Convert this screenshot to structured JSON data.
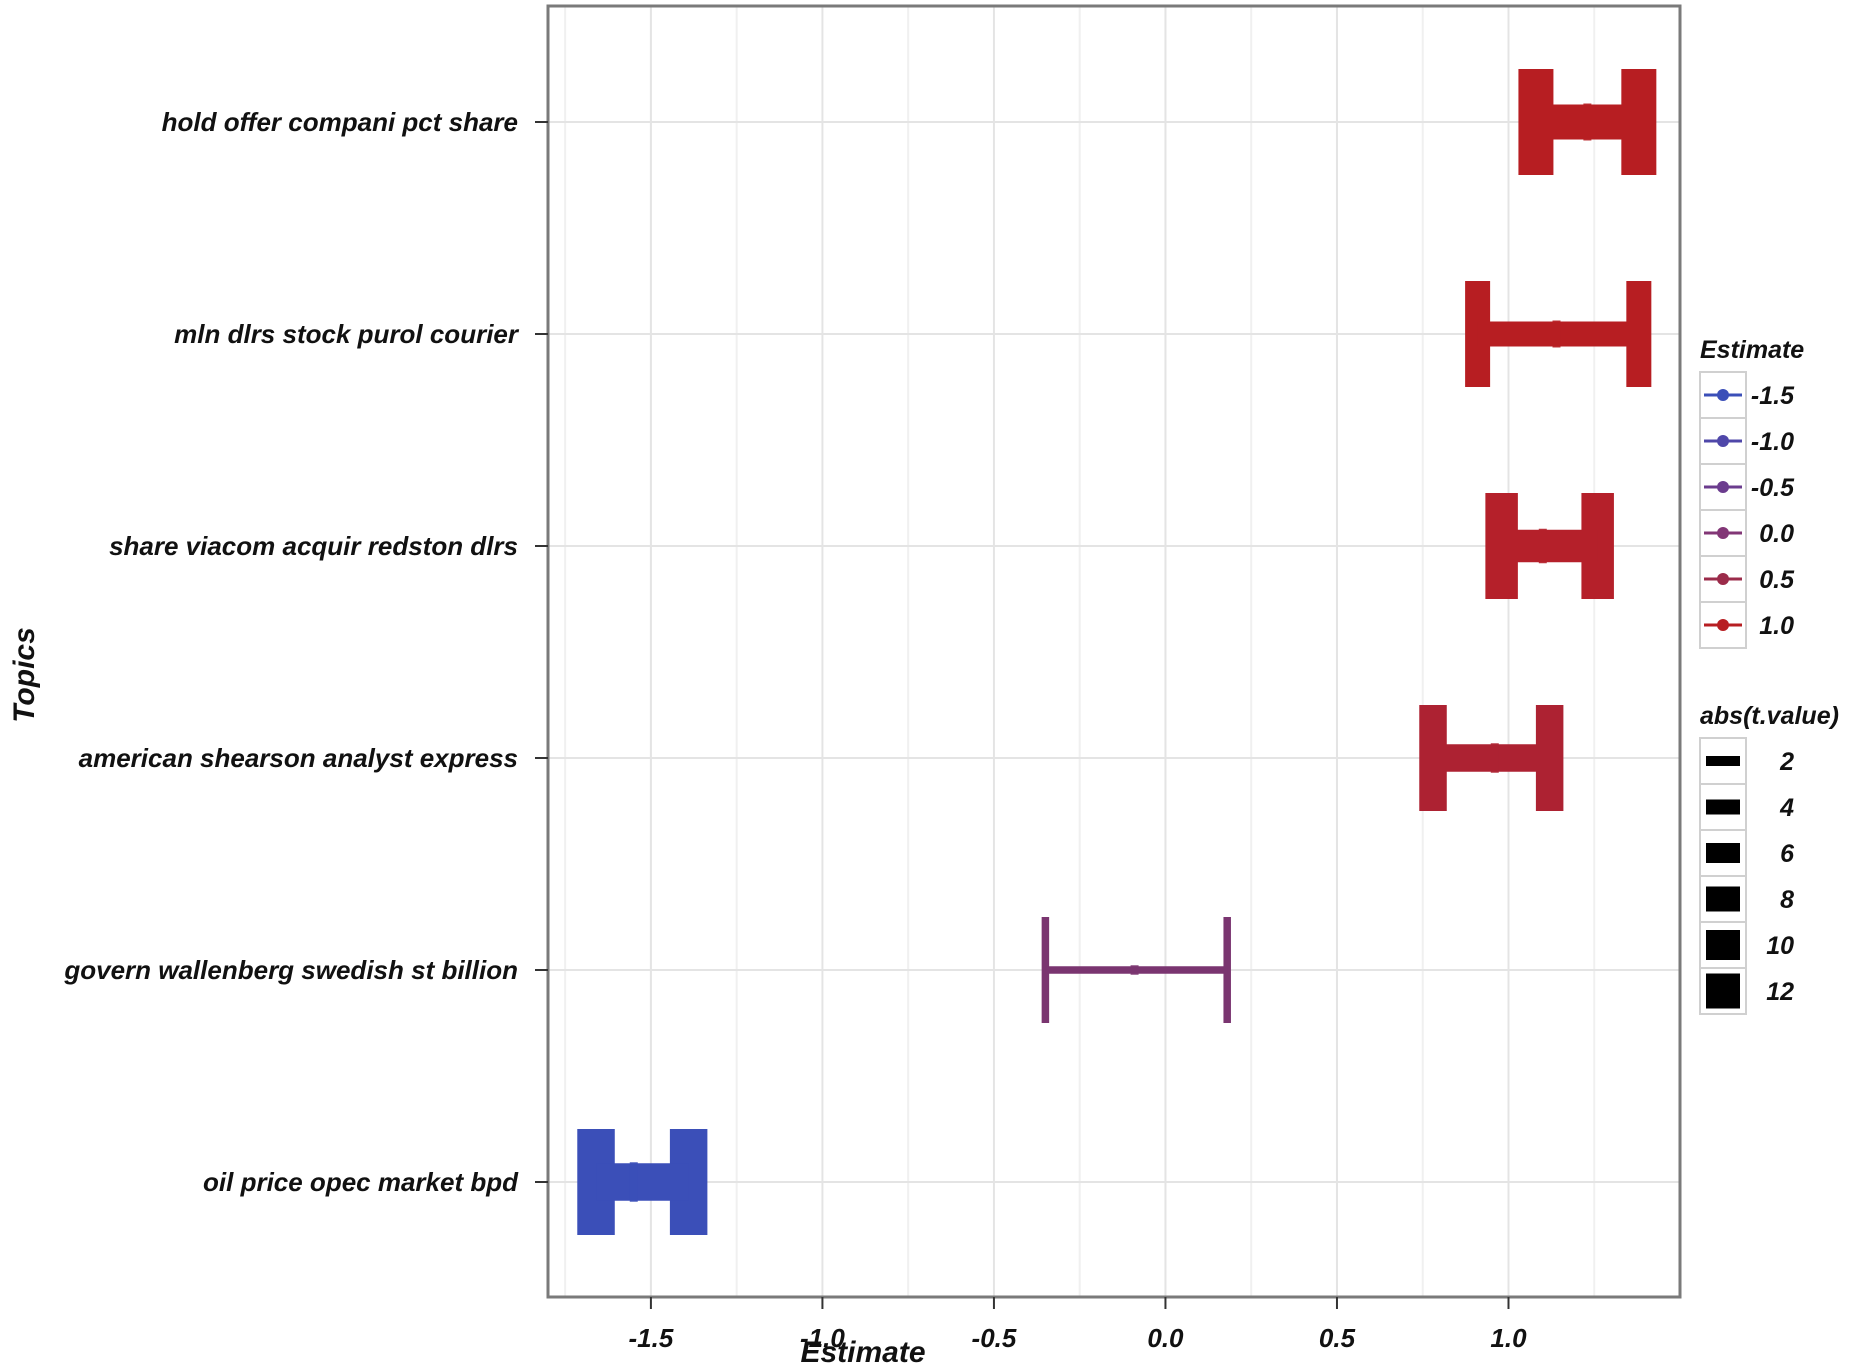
{
  "chart_data": {
    "type": "errorbar",
    "title": "",
    "xlabel": "Estimate",
    "ylabel": "Topics",
    "xlim": [
      -1.8,
      1.5
    ],
    "x_ticks": [
      -1.5,
      -1.0,
      -0.5,
      0.0,
      0.5,
      1.0
    ],
    "x_tick_labels": [
      "-1.5",
      "-1.0",
      "-0.5",
      "0.0",
      "0.5",
      "1.0"
    ],
    "grid": true,
    "categories": [
      "hold offer compani pct share",
      "mln dlrs stock purol courier",
      "share viacom acquir redston dlrs",
      "american shearson analyst express",
      "govern wallenberg swedish st billion",
      "oil price opec market bpd"
    ],
    "series": [
      {
        "values": [
          {
            "topic": "hold offer compani pct share",
            "estimate": 1.23,
            "lower": 1.08,
            "upper": 1.38,
            "abs_t_value": 12,
            "color": "#b71e22"
          },
          {
            "topic": "mln dlrs stock purol courier",
            "estimate": 1.14,
            "lower": 0.91,
            "upper": 1.38,
            "abs_t_value": 8,
            "color": "#b71e22"
          },
          {
            "topic": "share viacom acquir redston dlrs",
            "estimate": 1.1,
            "lower": 0.98,
            "upper": 1.26,
            "abs_t_value": 11,
            "color": "#b5202a"
          },
          {
            "topic": "american shearson analyst express",
            "estimate": 0.96,
            "lower": 0.78,
            "upper": 1.12,
            "abs_t_value": 9,
            "color": "#ad2232"
          },
          {
            "topic": "govern wallenberg swedish st billion",
            "estimate": -0.09,
            "lower": -0.35,
            "upper": 0.18,
            "abs_t_value": 1,
            "color": "#7a3570"
          },
          {
            "topic": "oil price opec market bpd",
            "estimate": -1.55,
            "lower": -1.66,
            "upper": -1.39,
            "abs_t_value": 13,
            "color": "#3b4fb8"
          }
        ]
      }
    ],
    "legend_placement": "right",
    "legend_color": {
      "title": "Estimate",
      "entries": [
        {
          "label": "-1.5",
          "color": "#3b4fb8"
        },
        {
          "label": "-1.0",
          "color": "#4f47a9"
        },
        {
          "label": "-0.5",
          "color": "#6b3c8e"
        },
        {
          "label": "0.0",
          "color": "#823676"
        },
        {
          "label": "0.5",
          "color": "#9b2b4a"
        },
        {
          "label": "1.0",
          "color": "#b71e22"
        }
      ]
    },
    "legend_size": {
      "title": "abs(t.value)",
      "entries": [
        {
          "label": "2",
          "value": 2
        },
        {
          "label": "4",
          "value": 4
        },
        {
          "label": "6",
          "value": 6
        },
        {
          "label": "8",
          "value": 8
        },
        {
          "label": "10",
          "value": 10
        },
        {
          "label": "12",
          "value": 12
        }
      ]
    }
  }
}
